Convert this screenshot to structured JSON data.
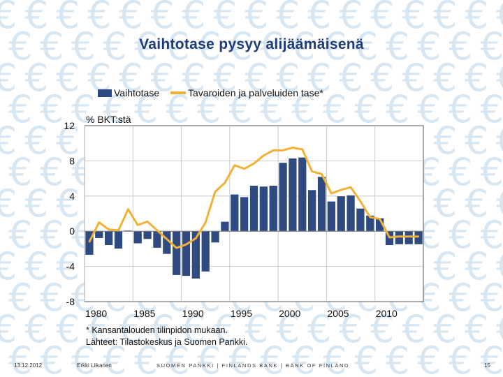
{
  "slide": {
    "title": "Vaihtotase pysyy alijäämäisenä",
    "footnote1": "* Kansantalouden tilinpidon mukaan.",
    "footnote2": "Lähteet: Tilastokeskus ja Suomen Pankki.",
    "date": "13.12.2012",
    "author": "Erkki Liikanen",
    "bank": "SUOMEN PANKKI | FINLANDS BANK | BANK OF FINLAND",
    "page": "15",
    "watermark_glyph": "€"
  },
  "colors": {
    "bar": "#2e4a80",
    "line": "#f2b136",
    "title": "#1f3b7a",
    "watermark": "#d7e6f3"
  },
  "chart_data": {
    "type": "bar",
    "unit_label": "% BKT:stä",
    "xlabel": "",
    "ylabel": "",
    "x_ticks": [
      "1980",
      "1985",
      "1990",
      "1995",
      "2000",
      "2005",
      "2010"
    ],
    "y_ticks": [
      "12",
      "8",
      "4",
      "0",
      "-4",
      "-8"
    ],
    "ylim": [
      -8,
      12
    ],
    "xlim": [
      1979.5,
      2014.5
    ],
    "legend_position": "top",
    "series": [
      {
        "name": "Vaihtotase",
        "type": "bar",
        "x": [
          1980,
          1981,
          1982,
          1983,
          1984,
          1985,
          1986,
          1987,
          1988,
          1989,
          1990,
          1991,
          1992,
          1993,
          1994,
          1995,
          1996,
          1997,
          1998,
          1999,
          2000,
          2001,
          2002,
          2003,
          2004,
          2005,
          2006,
          2007,
          2008,
          2009,
          2010,
          2011,
          2012,
          2013,
          2014
        ],
        "values": [
          -2.7,
          -0.8,
          -1.6,
          -2.0,
          0.1,
          -1.4,
          -0.9,
          -1.9,
          -2.6,
          -5.0,
          -5.1,
          -5.4,
          -4.6,
          -1.3,
          1.1,
          4.2,
          3.9,
          5.2,
          5.1,
          5.2,
          7.8,
          8.3,
          8.4,
          4.7,
          6.2,
          3.4,
          4.0,
          4.1,
          2.6,
          1.8,
          1.5,
          -1.6,
          -1.5,
          -1.5,
          -1.5
        ]
      },
      {
        "name": "Tavaroiden ja palveluiden tase*",
        "type": "line",
        "x": [
          1980,
          1981,
          1982,
          1983,
          1984,
          1985,
          1986,
          1987,
          1988,
          1989,
          1990,
          1991,
          1992,
          1993,
          1994,
          1995,
          1996,
          1997,
          1998,
          1999,
          2000,
          2001,
          2002,
          2003,
          2004,
          2005,
          2006,
          2007,
          2008,
          2009,
          2010,
          2011,
          2012,
          2013,
          2014
        ],
        "values": [
          -1.2,
          1.0,
          0.2,
          0.1,
          2.5,
          0.7,
          1.1,
          0.1,
          -0.9,
          -1.9,
          -1.5,
          -0.8,
          1.0,
          4.5,
          5.5,
          7.5,
          7.1,
          7.7,
          8.6,
          9.2,
          9.2,
          9.5,
          9.3,
          6.8,
          6.5,
          4.3,
          4.7,
          5.0,
          3.4,
          1.6,
          1.4,
          -0.7,
          -0.6,
          -0.6,
          -0.6
        ]
      }
    ]
  }
}
